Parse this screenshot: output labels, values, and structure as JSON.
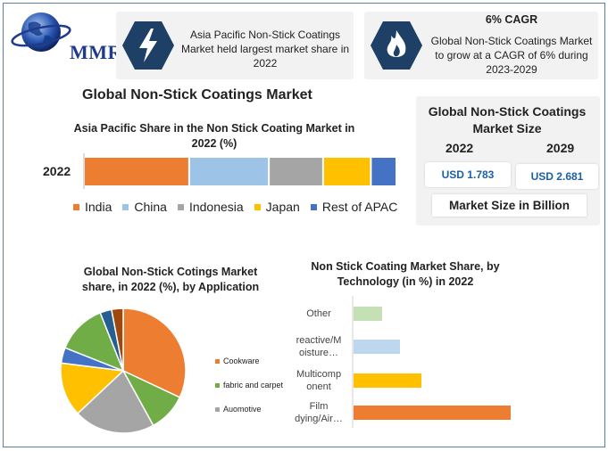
{
  "brand": {
    "name": "MMR"
  },
  "card1": {
    "text": "Asia Pacific Non-Stick Coatings Market held largest market share in 2022",
    "icon": "lightning-icon"
  },
  "card2": {
    "heading": "6% CAGR",
    "text": "Global Non-Stick Coatings Market to grow at a CAGR of 6% during 2023-2029",
    "icon": "flame-icon"
  },
  "main_title": "Global Non-Stick Coatings Market",
  "market_size": {
    "title": "Global Non-Stick Coatings Market Size",
    "year1": "2022",
    "year2": "2029",
    "value1": "USD 1.783",
    "value2": "USD 2.681",
    "unit": "Market Size in Billion"
  },
  "colors": {
    "accent": "#1e3f66",
    "india": "#ed7d31",
    "china": "#9dc3e6",
    "indonesia": "#a5a5a5",
    "japan": "#ffc000",
    "rest": "#4472c4"
  },
  "chart_data": [
    {
      "type": "bar",
      "title": "Asia Pacific Share in the Non Stick Coating Market in 2022 (%)",
      "orientation": "stacked-horizontal",
      "categories": [
        "2022"
      ],
      "series": [
        {
          "name": "India",
          "values": [
            33
          ],
          "color": "#ed7d31"
        },
        {
          "name": "China",
          "values": [
            25
          ],
          "color": "#9dc3e6"
        },
        {
          "name": "Indonesia",
          "values": [
            17
          ],
          "color": "#a5a5a5"
        },
        {
          "name": "Japan",
          "values": [
            15
          ],
          "color": "#ffc000"
        },
        {
          "name": "Rest of APAC",
          "values": [
            8
          ],
          "color": "#4472c4"
        }
      ],
      "legend": "bottom"
    },
    {
      "type": "pie",
      "title": "Global Non-Stick Cotings Market share, in 2022 (%), by Application",
      "slices": [
        {
          "label": "Cookware",
          "value": 32,
          "color": "#ed7d31"
        },
        {
          "label": "fabric and carpet",
          "value": 10,
          "color": "#70ad47"
        },
        {
          "label": "Auomotive",
          "value": 21,
          "color": "#a5a5a5"
        },
        {
          "label": "",
          "value": 14,
          "color": "#ffc000"
        },
        {
          "label": "",
          "value": 4,
          "color": "#4472c4"
        },
        {
          "label": "",
          "value": 13,
          "color": "#70ad47"
        },
        {
          "label": "",
          "value": 3,
          "color": "#255e91"
        },
        {
          "label": "",
          "value": 3,
          "color": "#9e480e"
        }
      ],
      "legend": "right"
    },
    {
      "type": "bar",
      "title": "Non Stick Coating Market Share, by Technology (in %) in 2022",
      "orientation": "horizontal",
      "categories": [
        "Other",
        "reactive/M oisture…",
        "Multicomp onent",
        "Film dying/Air…"
      ],
      "values": [
        8,
        13,
        19,
        44
      ],
      "colors": [
        "#c5e0b4",
        "#bdd7ee",
        "#ffc000",
        "#ed7d31"
      ],
      "xlim": [
        0,
        50
      ]
    }
  ]
}
